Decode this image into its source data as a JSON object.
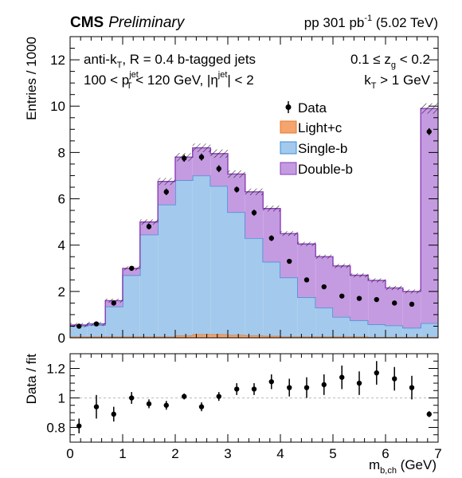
{
  "header": {
    "experiment": "CMS",
    "status": "Preliminary",
    "lumi_prefix": "pp 301 pb",
    "lumi_exp": "-1",
    "lumi_suffix": " (5.02 TeV)"
  },
  "annotations": {
    "jets_1": "anti-k",
    "jets_1_sub": "T",
    "jets_2": ", R = 0.4 b-tagged jets",
    "pt_1": "100 < p",
    "pt_sup": "jet",
    "pt_sub": "T",
    "pt_2": " < 120 GeV, |η",
    "eta_sup": "jet",
    "pt_3": "| < 2",
    "zg_1": "0.1 ≤ z",
    "zg_sub": "g",
    "zg_2": " < 0.2",
    "kt_1": "k",
    "kt_sub": "T",
    "kt_2": " > 1 GeV"
  },
  "axes": {
    "top_ylabel": "Entries / 1000",
    "bottom_ylabel": "Data / fit",
    "xlabel_main": "m",
    "xlabel_sub": "b,ch",
    "xlabel_unit": " (GeV)"
  },
  "legend": {
    "data": "Data",
    "light": "Light+c",
    "single": "Single-b",
    "double": "Double-b"
  },
  "colors": {
    "light": "#f4a46c",
    "light_edge": "#e07a30",
    "single": "#a3c9ec",
    "single_edge": "#3a8fd8",
    "double": "#c49be0",
    "double_edge": "#8a3fb8"
  },
  "chart_data": [
    {
      "type": "bar",
      "stacked": true,
      "ylabel": "Entries / 1000",
      "xlim": [
        0,
        7
      ],
      "ylim": [
        0,
        13
      ],
      "bin_edges": [
        0,
        0.33,
        0.67,
        1.0,
        1.33,
        1.67,
        2.0,
        2.33,
        2.67,
        3.0,
        3.33,
        3.67,
        4.0,
        4.33,
        4.67,
        5.0,
        5.33,
        5.67,
        6.0,
        6.33,
        6.67,
        7.0
      ],
      "series": [
        {
          "name": "Light+c",
          "values": [
            0.05,
            0.05,
            0.05,
            0.05,
            0.05,
            0.05,
            0.1,
            0.15,
            0.15,
            0.12,
            0.1,
            0.08,
            0.05,
            0.05,
            0.05,
            0.05,
            0.05,
            0.03,
            0.03,
            0.03,
            0.03
          ]
        },
        {
          "name": "Single-b",
          "values": [
            0.45,
            0.5,
            1.3,
            2.65,
            4.4,
            5.7,
            6.7,
            6.85,
            6.4,
            5.3,
            4.2,
            3.2,
            2.55,
            1.7,
            1.25,
            0.85,
            0.7,
            0.55,
            0.5,
            0.4,
            0.6
          ]
        },
        {
          "name": "Double-b",
          "values": [
            0.05,
            0.05,
            0.25,
            0.3,
            0.55,
            1.0,
            1.0,
            1.2,
            1.4,
            1.65,
            2.0,
            2.3,
            1.9,
            2.3,
            2.2,
            2.2,
            1.95,
            1.9,
            1.62,
            1.57,
            9.27
          ]
        }
      ],
      "data": {
        "name": "Data",
        "x": [
          0.17,
          0.5,
          0.83,
          1.17,
          1.5,
          1.83,
          2.17,
          2.5,
          2.83,
          3.17,
          3.5,
          3.83,
          4.17,
          4.5,
          4.83,
          5.17,
          5.5,
          5.83,
          6.17,
          6.5,
          6.83
        ],
        "y": [
          0.5,
          0.6,
          1.5,
          3.0,
          4.8,
          6.3,
          7.75,
          7.8,
          7.3,
          6.4,
          5.4,
          4.3,
          3.3,
          2.5,
          2.2,
          1.8,
          1.7,
          1.65,
          1.5,
          1.45,
          8.9
        ],
        "yerr": [
          0.08,
          0.08,
          0.1,
          0.1,
          0.12,
          0.14,
          0.15,
          0.15,
          0.15,
          0.13,
          0.13,
          0.12,
          0.1,
          0.1,
          0.1,
          0.08,
          0.08,
          0.08,
          0.08,
          0.08,
          0.15
        ]
      }
    },
    {
      "type": "scatter",
      "ylabel": "Data / fit",
      "xlabel": "m_b,ch (GeV)",
      "xlim": [
        0,
        7
      ],
      "ylim": [
        0.7,
        1.3
      ],
      "reference_line": 1.0,
      "x": [
        0.17,
        0.5,
        0.83,
        1.17,
        1.5,
        1.83,
        2.17,
        2.5,
        2.83,
        3.17,
        3.5,
        3.83,
        4.17,
        4.5,
        4.83,
        5.17,
        5.5,
        5.83,
        6.17,
        6.5,
        6.83
      ],
      "y": [
        0.81,
        0.94,
        0.89,
        1.0,
        0.96,
        0.95,
        1.01,
        0.94,
        1.01,
        1.06,
        1.06,
        1.11,
        1.07,
        1.07,
        1.09,
        1.14,
        1.1,
        1.17,
        1.13,
        1.07,
        0.89
      ],
      "yerr": [
        0.05,
        0.08,
        0.05,
        0.04,
        0.03,
        0.03,
        0.02,
        0.03,
        0.03,
        0.04,
        0.04,
        0.05,
        0.06,
        0.07,
        0.07,
        0.08,
        0.08,
        0.08,
        0.08,
        0.08,
        0.02
      ]
    }
  ],
  "ticks": {
    "top_y": [
      "0",
      "2",
      "4",
      "6",
      "8",
      "10",
      "12"
    ],
    "bottom_y": [
      "0.8",
      "1",
      "1.2"
    ],
    "x": [
      "0",
      "1",
      "2",
      "3",
      "4",
      "5",
      "6",
      "7"
    ]
  }
}
